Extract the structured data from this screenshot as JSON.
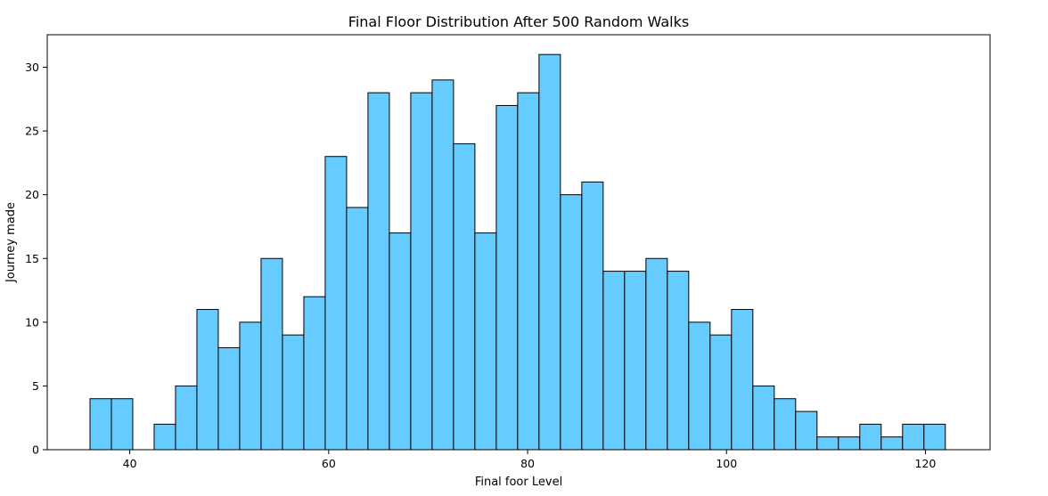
{
  "chart_data": {
    "type": "bar",
    "title": "Final Floor Distribution After 500 Random Walks",
    "xlabel": "Final foor Level",
    "ylabel": "Journey made",
    "xlim": [
      31.7,
      126.5
    ],
    "ylim": [
      0,
      32.55
    ],
    "x_ticks": [
      40,
      60,
      80,
      100,
      120
    ],
    "y_ticks": [
      0,
      5,
      10,
      15,
      20,
      25,
      30
    ],
    "grid": false,
    "bar_color": "#66ccff",
    "edge_color": "#000000",
    "bin_start": 36.0,
    "bin_width": 2.15,
    "values": [
      4,
      4,
      0,
      2,
      5,
      11,
      8,
      10,
      15,
      9,
      12,
      23,
      19,
      28,
      17,
      28,
      29,
      24,
      17,
      27,
      28,
      31,
      20,
      21,
      14,
      14,
      15,
      14,
      10,
      9,
      11,
      5,
      4,
      3,
      1,
      1,
      2,
      1,
      2,
      2
    ]
  }
}
